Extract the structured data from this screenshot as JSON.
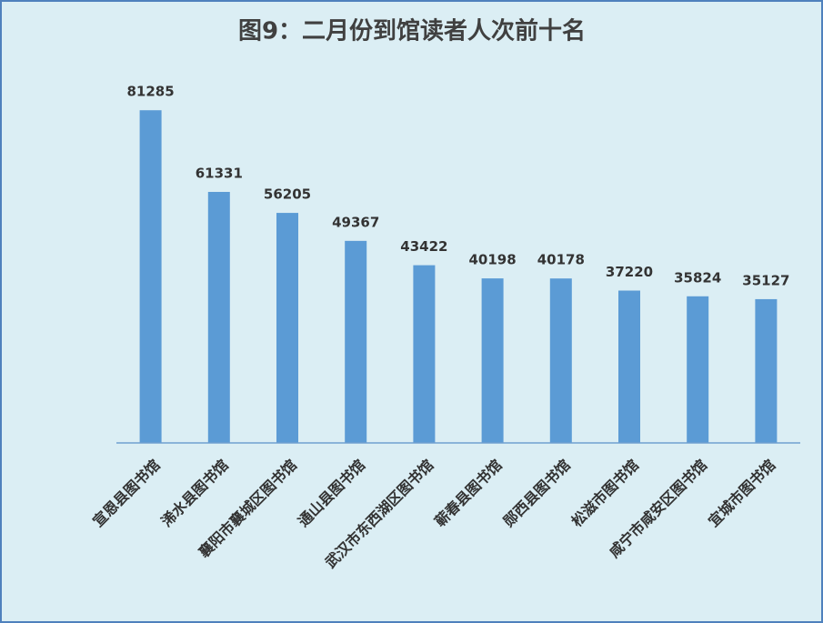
{
  "chart_data": {
    "type": "bar",
    "title": "图9：二月份到馆读者人次前十名",
    "categories": [
      "宣恩县图书馆",
      "浠水县图书馆",
      "襄阳市襄城区图书馆",
      "通山县图书馆",
      "武汉市东西湖区图书馆",
      "蕲春县图书馆",
      "郧西县图书馆",
      "松滋市图书馆",
      "咸宁市咸安区图书馆",
      "宜城市图书馆"
    ],
    "values": [
      81285,
      61331,
      56205,
      49367,
      43422,
      40198,
      40178,
      37220,
      35824,
      35127
    ],
    "color": "#5b9bd5",
    "ylim": [
      0,
      90000
    ]
  }
}
